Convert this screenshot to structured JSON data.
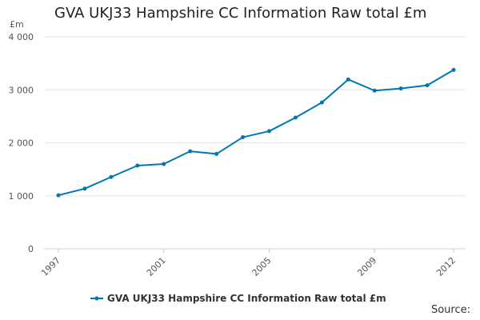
{
  "chart_data": {
    "type": "line",
    "title": "GVA UKJ33 Hampshire CC Information Raw total £m",
    "xlabel": "",
    "ylabel": "£m",
    "x": [
      1997,
      1998,
      1999,
      2000,
      2001,
      2002,
      2003,
      2004,
      2005,
      2006,
      2007,
      2008,
      2009,
      2010,
      2011,
      2012
    ],
    "series": [
      {
        "name": "GVA UKJ33 Hampshire CC Information Raw total £m",
        "color": "#0077b3",
        "values": [
          1010,
          1135,
          1355,
          1570,
          1600,
          1840,
          1790,
          2105,
          2220,
          2475,
          2760,
          3195,
          2985,
          3025,
          3085,
          3375
        ]
      }
    ],
    "ylim": [
      0,
      4000
    ],
    "xlim": [
      1997,
      2012
    ],
    "yticks": [
      0,
      1000,
      2000,
      3000,
      4000
    ],
    "ytick_labels": [
      "0",
      "1 000",
      "2 000",
      "3 000",
      "4 000"
    ],
    "xticks": [
      1997,
      2001,
      2005,
      2009,
      2012
    ],
    "xtick_labels": [
      "1997",
      "2001",
      "2005",
      "2009",
      "2012"
    ],
    "grid": true,
    "legend": "bottom-center"
  },
  "source_label": "Source:"
}
